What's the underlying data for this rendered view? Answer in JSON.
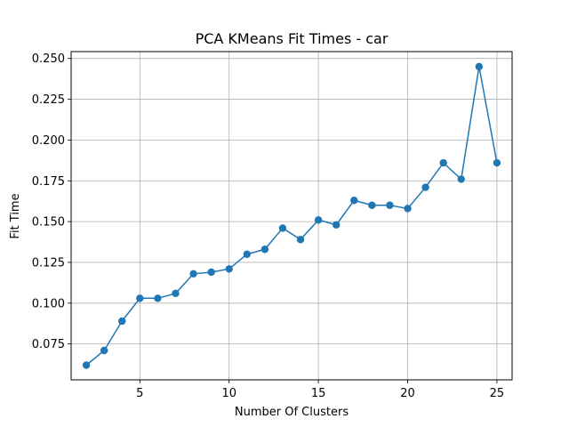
{
  "chart_data": {
    "type": "line",
    "title": "PCA KMeans Fit Times - car",
    "xlabel": "Number Of Clusters",
    "ylabel": "Fit Time",
    "xlim": [
      1.15,
      25.85
    ],
    "ylim": [
      0.053,
      0.2542
    ],
    "xticks": [
      5,
      10,
      15,
      20,
      25
    ],
    "yticks": [
      0.075,
      0.1,
      0.125,
      0.15,
      0.175,
      0.2,
      0.225,
      0.25
    ],
    "ytick_labels": [
      "0.075",
      "0.100",
      "0.125",
      "0.150",
      "0.175",
      "0.200",
      "0.225",
      "0.250"
    ],
    "grid": true,
    "color": "#1f77b4",
    "x": [
      2,
      3,
      4,
      5,
      6,
      7,
      8,
      9,
      10,
      11,
      12,
      13,
      14,
      15,
      16,
      17,
      18,
      19,
      20,
      21,
      22,
      23,
      24,
      25
    ],
    "y": [
      0.062,
      0.071,
      0.089,
      0.103,
      0.103,
      0.106,
      0.118,
      0.119,
      0.121,
      0.13,
      0.133,
      0.146,
      0.139,
      0.151,
      0.148,
      0.163,
      0.16,
      0.16,
      0.158,
      0.171,
      0.186,
      0.176,
      0.245,
      0.186
    ]
  }
}
